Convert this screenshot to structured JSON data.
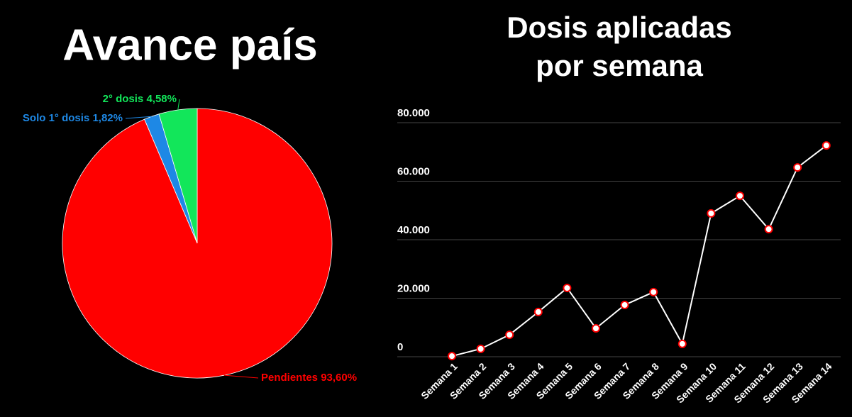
{
  "chart_data": [
    {
      "type": "pie",
      "title": "Avance país",
      "categories": [
        "Pendientes",
        "Solo 1° dosis",
        "2° dosis"
      ],
      "values": [
        93.6,
        1.82,
        4.58
      ],
      "value_labels": [
        "93,60%",
        "1,82%",
        "4,58%"
      ],
      "colors": [
        "#ff0000",
        "#1e88e5",
        "#12e65a"
      ]
    },
    {
      "type": "line",
      "title": "Dosis aplicadas por semana",
      "categories": [
        "Semana 1",
        "Semana 2",
        "Semana 3",
        "Semana 4",
        "Semana 5",
        "Semana 6",
        "Semana 7",
        "Semana 8",
        "Semana 9",
        "Semana 10",
        "Semana 11",
        "Semana 12",
        "Semana 13",
        "Semana 14"
      ],
      "values": [
        200,
        2700,
        7500,
        15300,
        23500,
        9700,
        17700,
        22100,
        4400,
        49000,
        55000,
        43600,
        64700,
        72200
      ],
      "color": "#ffffff",
      "marker_color": "#ff0000",
      "ylim": [
        0,
        80000
      ],
      "yticks": [
        0,
        {
          "value": 20000,
          "label": "20.000"
        },
        {
          "value": 40000,
          "label": "40.000"
        },
        {
          "value": 60000,
          "label": "60.000"
        },
        {
          "value": 80000,
          "label": "80.000"
        }
      ],
      "grid": true
    }
  ]
}
